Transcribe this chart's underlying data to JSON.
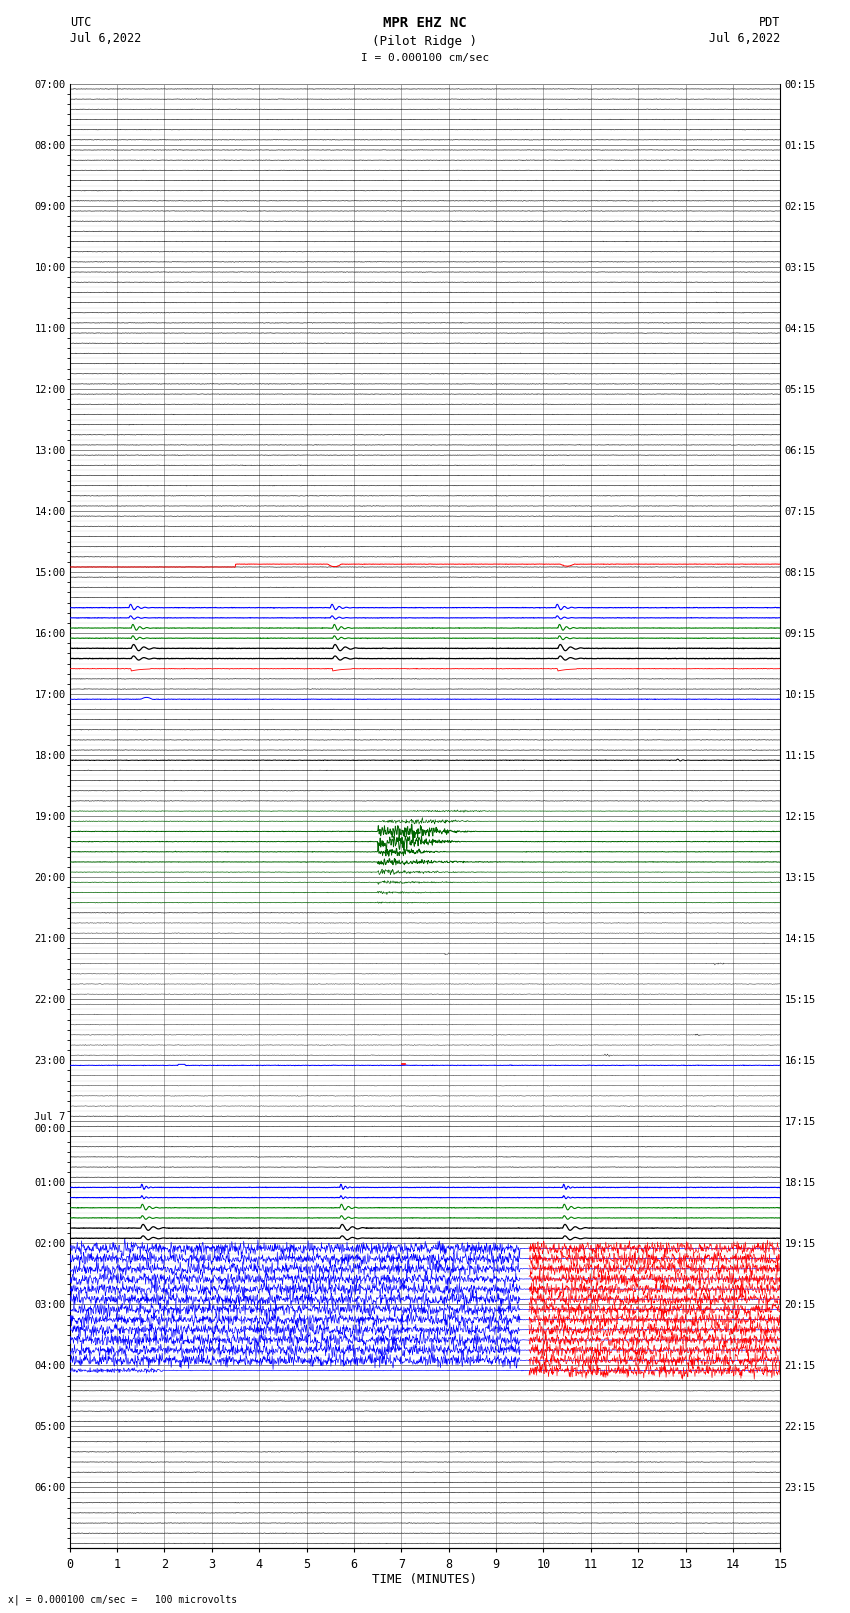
{
  "title_line1": "MPR EHZ NC",
  "title_line2": "(Pilot Ridge )",
  "scale_label": "I = 0.000100 cm/sec",
  "left_label_line1": "UTC",
  "left_label_line2": "Jul 6,2022",
  "right_label_line1": "PDT",
  "right_label_line2": "Jul 6,2022",
  "xlabel": "TIME (MINUTES)",
  "footer": "x| = 0.000100 cm/sec =   100 microvolts",
  "bg_color": "#ffffff",
  "grid_color_major": "#888888",
  "grid_color_minor": "#cccccc",
  "num_rows": 144,
  "num_cols": 15,
  "utc_hour_labels": [
    "07:00",
    "08:00",
    "09:00",
    "10:00",
    "11:00",
    "12:00",
    "13:00",
    "14:00",
    "15:00",
    "16:00",
    "17:00",
    "18:00",
    "19:00",
    "20:00",
    "21:00",
    "22:00",
    "23:00",
    "Jul 7\n00:00",
    "01:00",
    "02:00",
    "03:00",
    "04:00",
    "05:00",
    "06:00"
  ],
  "pdt_hour_labels": [
    "00:15",
    "01:15",
    "02:15",
    "03:15",
    "04:15",
    "05:15",
    "06:15",
    "07:15",
    "08:15",
    "09:15",
    "10:15",
    "11:15",
    "12:15",
    "13:15",
    "14:15",
    "15:15",
    "16:15",
    "17:15",
    "18:15",
    "19:15",
    "20:15",
    "21:15",
    "22:15",
    "23:15"
  ]
}
